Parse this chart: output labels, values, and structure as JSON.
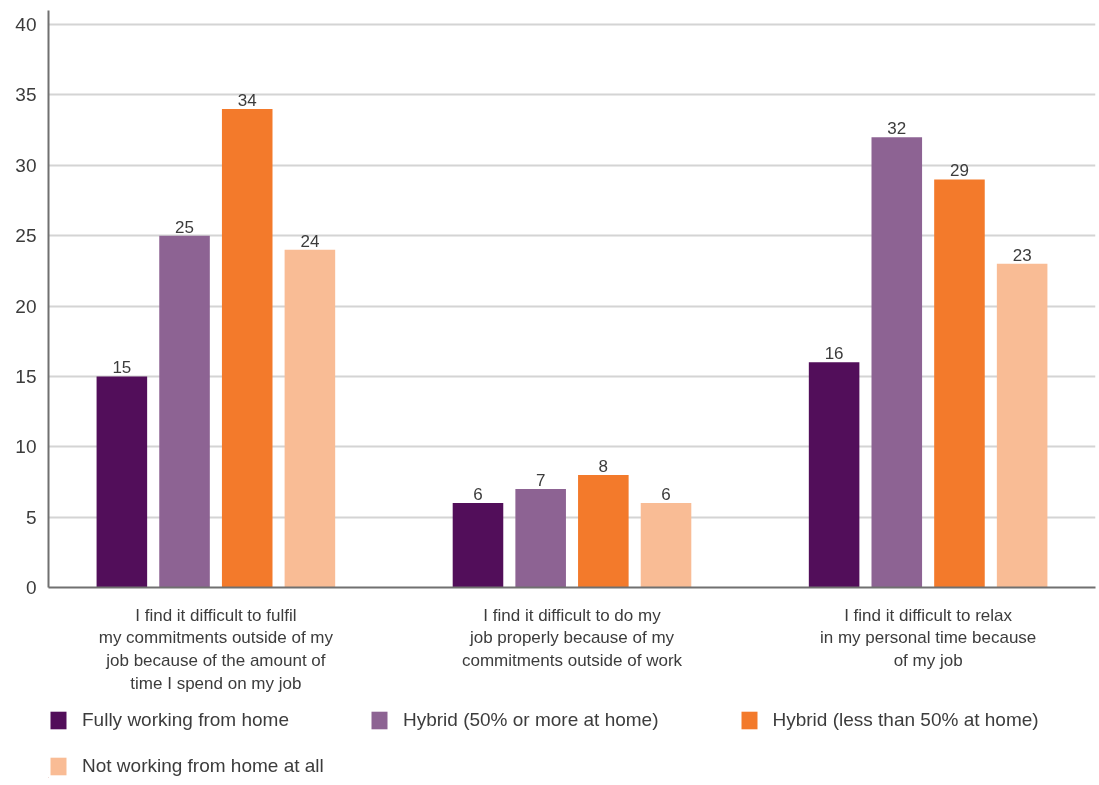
{
  "chart_data": {
    "type": "bar",
    "categories": [
      "I find it difficult to fulfil my commitments outside of my job because of the amount of time I spend on my job",
      "I find it difficult to do my job properly because of my commitments outside of work",
      "I find it difficult to relax in my personal time because of my job"
    ],
    "series": [
      {
        "name": "Fully working from home",
        "color": "#520e5a",
        "values": [
          15,
          6,
          16
        ]
      },
      {
        "name": "Hybrid (50% or more at home)",
        "color": "#8d6393",
        "values": [
          25,
          7,
          32
        ]
      },
      {
        "name": "Hybrid (less than 50% at home)",
        "color": "#f37a2b",
        "values": [
          34,
          8,
          29
        ]
      },
      {
        "name": "Not working from home at all",
        "color": "#f9bc95",
        "values": [
          24,
          6,
          23
        ]
      }
    ],
    "ylim": [
      0,
      41
    ],
    "yticks": [
      0,
      5,
      10,
      15,
      20,
      25,
      30,
      35,
      40
    ],
    "grid": "y",
    "legend": "bottom",
    "data_labels": true
  }
}
